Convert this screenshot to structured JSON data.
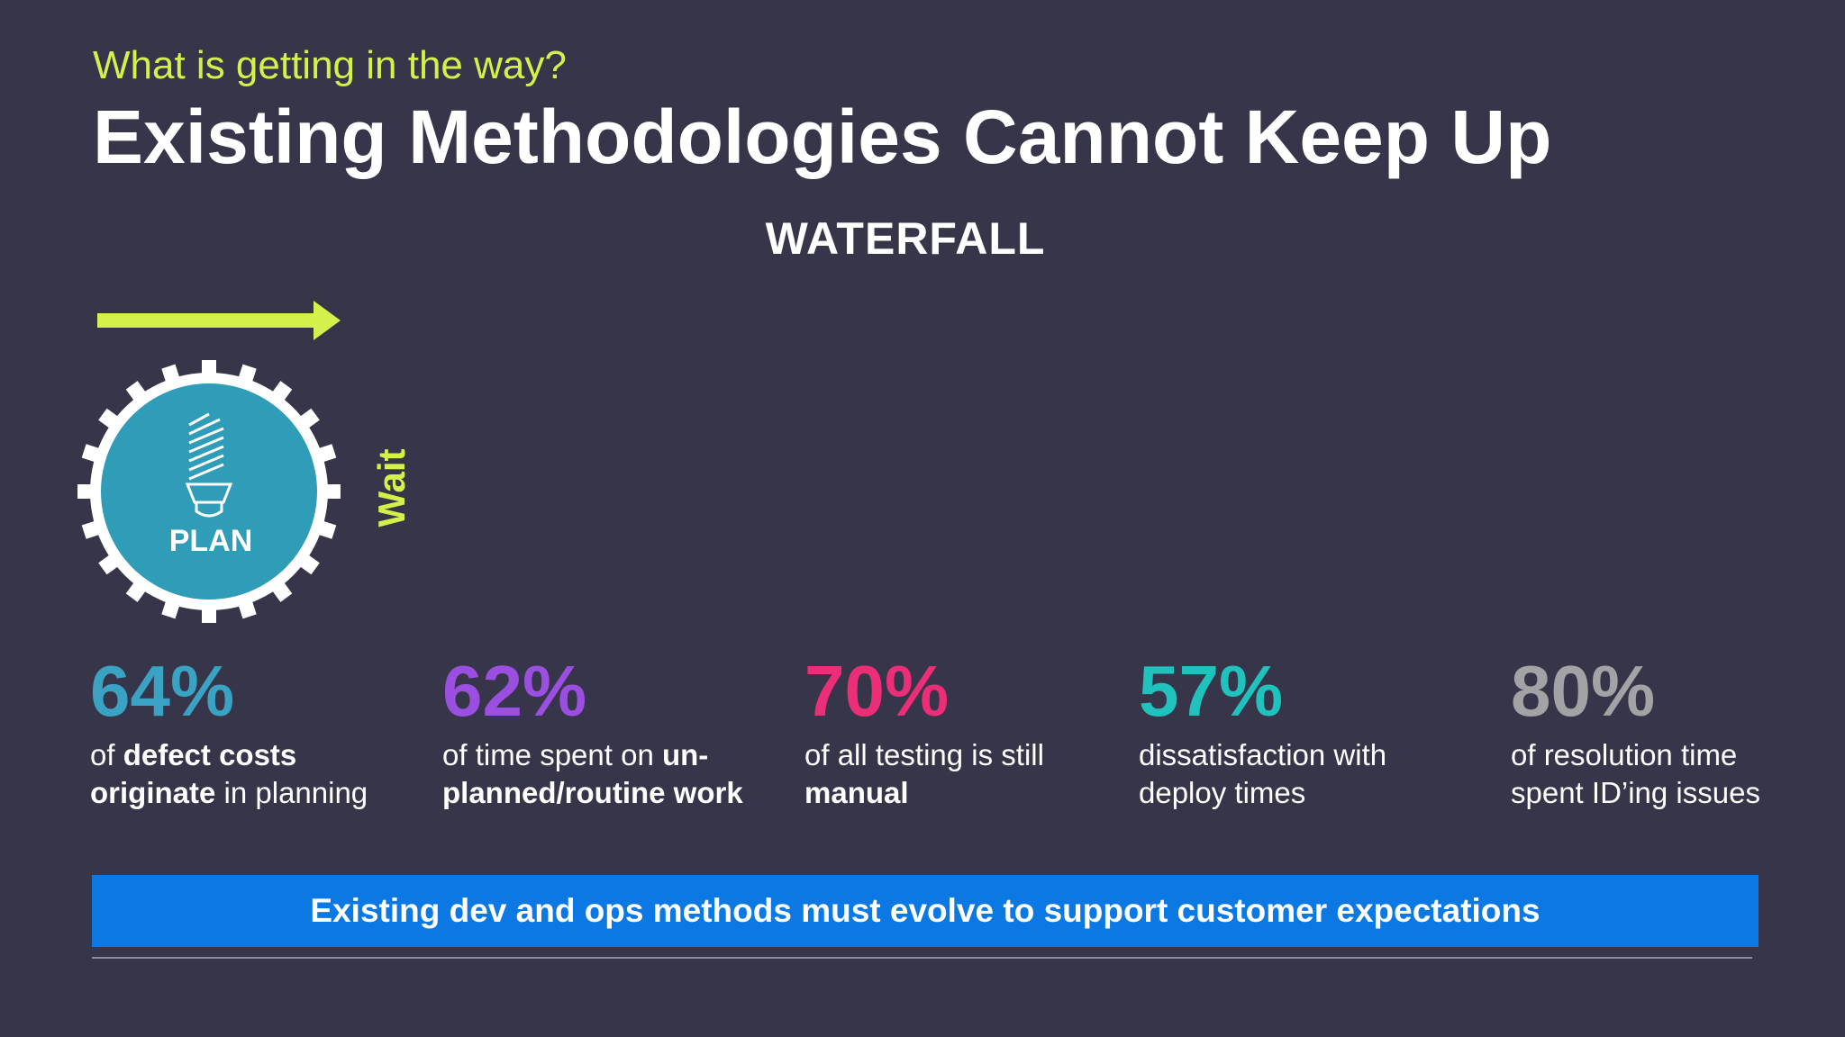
{
  "header": {
    "kicker": "What is getting in the way?",
    "title": "Existing Methodologies Cannot Keep Up"
  },
  "diagram": {
    "label": "WATERFALL",
    "phase_label": "PLAN",
    "wait_label": "Wait",
    "phase_icon": "lightbulb-icon",
    "colors": {
      "accent": "#d4f04a",
      "gear": "#ffffff",
      "phase_fill": "#2f9cb8",
      "background": "#37354a"
    }
  },
  "stats": [
    {
      "pct": "64%",
      "color": "#3aa3c3",
      "line1_bold": "defect costs",
      "line1_pre": "of ",
      "line2_bold": "originate",
      "line2_rest": " in planning"
    },
    {
      "pct": "62%",
      "color": "#9b4fe0",
      "line1_pre": "of time spent on ",
      "line1_bold": "un-",
      "line2_bold": "planned/routine work",
      "line2_rest": ""
    },
    {
      "pct": "70%",
      "color": "#ec2d78",
      "line1_pre": "of all testing is still",
      "line1_bold": "",
      "line2_bold": "manual",
      "line2_rest": ""
    },
    {
      "pct": "57%",
      "color": "#1fc2bd",
      "line1_pre": "dissatisfaction with",
      "line1_bold": "",
      "line2_bold": "",
      "line2_rest": "deploy times"
    },
    {
      "pct": "80%",
      "color": "#a3a3a6",
      "line1_pre": "of resolution time",
      "line1_bold": "",
      "line2_bold": "",
      "line2_rest": "spent ID’ing issues"
    }
  ],
  "banner": {
    "text": "Existing dev and ops methods must evolve to support customer expectations",
    "color": "#0b78e3"
  }
}
